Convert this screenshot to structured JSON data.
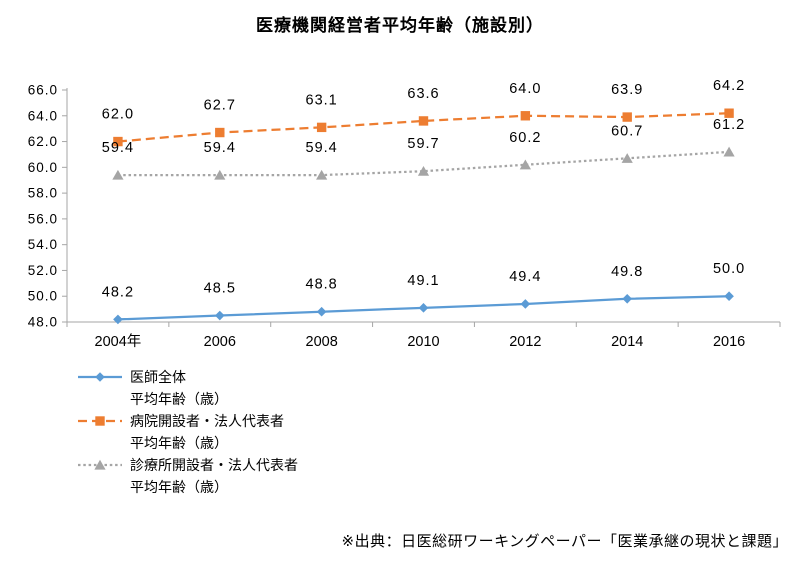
{
  "title": "医療機関経営者平均年齢（施設別）",
  "source_note": "※出典：日医総研ワーキングペーパー「医業承継の現状と課題」",
  "chart_data": {
    "type": "line",
    "title": "医療機関経営者平均年齢（施設別）",
    "xlabel": "",
    "ylabel": "",
    "categories": [
      "2004年",
      "2006",
      "2008",
      "2010",
      "2012",
      "2014",
      "2016"
    ],
    "series": [
      {
        "name": "医師全体 平均年齢（歳）",
        "legend_lines": [
          "医師全体",
          "平均年齢（歳）"
        ],
        "values": [
          48.2,
          48.5,
          48.8,
          49.1,
          49.4,
          49.8,
          50.0
        ],
        "color": "#5B9BD5",
        "line_style": "solid",
        "marker": "diamond"
      },
      {
        "name": "病院開設者・法人代表者 平均年齢（歳）",
        "legend_lines": [
          "病院開設者・法人代表者",
          "平均年齢（歳）"
        ],
        "values": [
          62.0,
          62.7,
          63.1,
          63.6,
          64.0,
          63.9,
          64.2
        ],
        "color": "#ED7D31",
        "line_style": "dash",
        "marker": "square"
      },
      {
        "name": "診療所開設者・法人代表者 平均年齢（歳）",
        "legend_lines": [
          "診療所開設者・法人代表者",
          "平均年齢（歳）"
        ],
        "values": [
          59.4,
          59.4,
          59.4,
          59.7,
          60.2,
          60.7,
          61.2
        ],
        "color": "#A5A5A5",
        "line_style": "dot",
        "marker": "triangle"
      }
    ],
    "ylim": [
      48.0,
      66.0
    ],
    "ytick_labels": [
      "48.0",
      "50.0",
      "52.0",
      "54.0",
      "56.0",
      "58.0",
      "60.0",
      "62.0",
      "64.0",
      "66.0"
    ],
    "grid": false,
    "data_labels": true,
    "legend_position": "bottom-left",
    "axis_color": "#A6A6A6",
    "text_color": "#000000"
  }
}
